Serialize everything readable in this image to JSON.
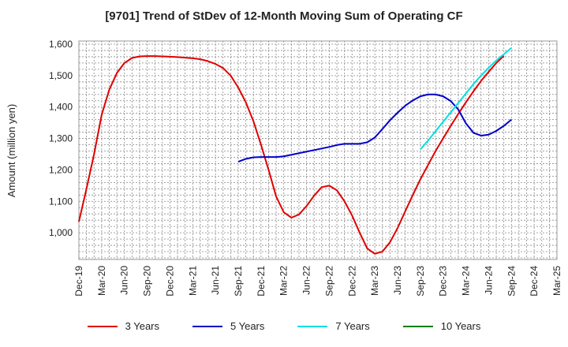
{
  "chart_data": {
    "type": "line",
    "title": "[9701]  Trend of StDev of 12-Month Moving Sum of Operating CF",
    "xlabel": "",
    "ylabel": "Amount (million yen)",
    "ylim": [
      915,
      1610
    ],
    "yticks": [
      1000,
      1100,
      1200,
      1300,
      1400,
      1500,
      1600
    ],
    "ytick_labels": [
      "1,000",
      "1,100",
      "1,200",
      "1,300",
      "1,400",
      "1,500",
      "1,600"
    ],
    "xticks": [
      "Dec-19",
      "Mar-20",
      "Jun-20",
      "Sep-20",
      "Dec-20",
      "Mar-21",
      "Jun-21",
      "Sep-21",
      "Dec-21",
      "Mar-22",
      "Jun-22",
      "Sep-22",
      "Dec-22",
      "Mar-23",
      "Jun-23",
      "Sep-23",
      "Dec-23",
      "Mar-24",
      "Jun-24",
      "Sep-24",
      "Dec-24",
      "Mar-25"
    ],
    "grid": true,
    "legend_position": "bottom",
    "series": [
      {
        "name": "3 Years",
        "color": "#e00000",
        "start_index": 0,
        "values": [
          1035,
          1140,
          1250,
          1375,
          1455,
          1508,
          1540,
          1556,
          1561,
          1562,
          1562,
          1561,
          1560,
          1559,
          1557,
          1555,
          1552,
          1546,
          1537,
          1524,
          1500,
          1462,
          1415,
          1355,
          1280,
          1200,
          1115,
          1065,
          1048,
          1058,
          1085,
          1118,
          1145,
          1150,
          1135,
          1100,
          1055,
          1000,
          950,
          933,
          940,
          970,
          1015,
          1068,
          1120,
          1170,
          1215,
          1260,
          1300,
          1340,
          1378,
          1415,
          1450,
          1483,
          1512,
          1540,
          1563
        ]
      },
      {
        "name": "5 Years",
        "color": "#0000cc",
        "start_index": 21,
        "values": [
          1226,
          1235,
          1240,
          1241,
          1241,
          1241,
          1243,
          1248,
          1253,
          1258,
          1263,
          1268,
          1273,
          1279,
          1283,
          1283,
          1283,
          1288,
          1303,
          1330,
          1358,
          1382,
          1404,
          1421,
          1434,
          1440,
          1440,
          1434,
          1419,
          1392,
          1348,
          1318,
          1309,
          1312,
          1324,
          1340,
          1360
        ]
      },
      {
        "name": "7 Years",
        "color": "#00e0e0",
        "start_index": 45,
        "values": [
          1265,
          1293,
          1323,
          1353,
          1383,
          1413,
          1443,
          1473,
          1500,
          1525,
          1548,
          1568,
          1588
        ]
      },
      {
        "name": "10 Years",
        "color": "#008000",
        "start_index": 0,
        "values": []
      }
    ]
  }
}
